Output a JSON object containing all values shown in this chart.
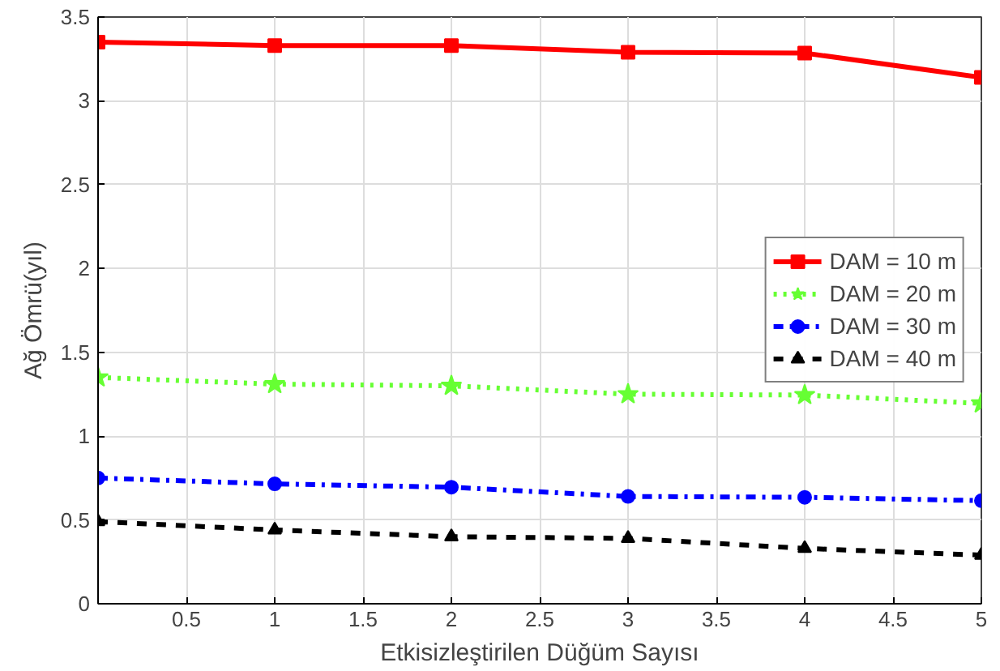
{
  "chart_data": {
    "type": "line",
    "xlabel": "Etkisizleştirilen Düğüm Sayısı",
    "ylabel": "Ağ Ömrü(yıl)",
    "x": [
      0,
      1,
      2,
      3,
      4,
      5
    ],
    "series": [
      {
        "name": "DAM = 10 m",
        "color": "#ff0000",
        "marker": "square",
        "line_style": "solid",
        "values": [
          3.35,
          3.33,
          3.33,
          3.29,
          3.285,
          3.14
        ]
      },
      {
        "name": "DAM = 20 m",
        "color": "#66ff33",
        "marker": "star",
        "line_style": "dotted",
        "values": [
          1.35,
          1.31,
          1.3,
          1.25,
          1.245,
          1.195
        ]
      },
      {
        "name": "DAM = 30 m",
        "color": "#0000ff",
        "marker": "circle",
        "line_style": "dashdot",
        "values": [
          0.75,
          0.715,
          0.695,
          0.64,
          0.635,
          0.615
        ]
      },
      {
        "name": "DAM = 40 m",
        "color": "#000000",
        "marker": "triangle",
        "line_style": "dashed",
        "values": [
          0.49,
          0.44,
          0.4,
          0.39,
          0.33,
          0.29
        ]
      }
    ],
    "xlim": [
      0,
      5
    ],
    "xticks": [
      0.5,
      1,
      1.5,
      2,
      2.5,
      3,
      3.5,
      4,
      4.5,
      5
    ],
    "ylim": [
      0,
      3.5
    ],
    "yticks": [
      0,
      0.5,
      1,
      1.5,
      2,
      2.5,
      3,
      3.5
    ],
    "grid": true,
    "legend": "right"
  }
}
